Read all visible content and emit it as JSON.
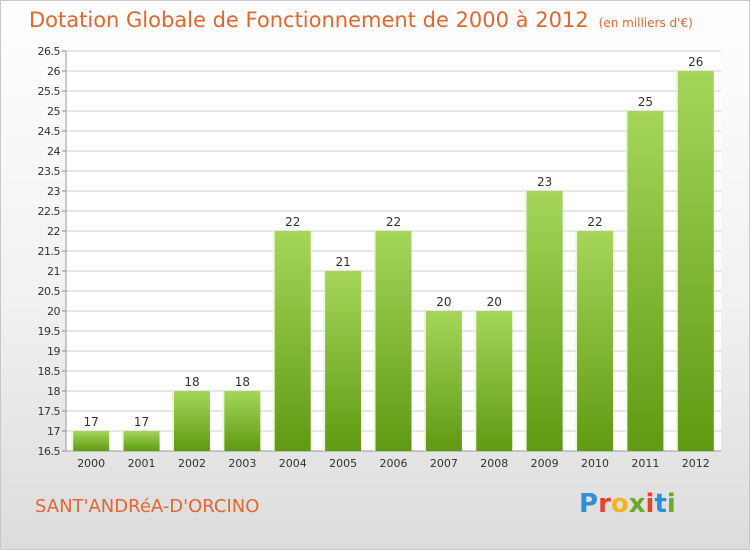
{
  "header": {
    "title": "Dotation Globale de Fonctionnement de 2000 à 2012",
    "unit": "(en milliers d'€)"
  },
  "commune": "SANT'ANDRéA-D'ORCINO",
  "logo": {
    "letters": [
      "P",
      "r",
      "o",
      "x",
      "i",
      "t",
      "i"
    ],
    "colors": [
      "#2f8fd6",
      "#e8412e",
      "#f2b417",
      "#6aaa2a",
      "#e8412e",
      "#2f8fd6",
      "#6aaa2a"
    ]
  },
  "colors": {
    "bar_light": "#a5d65a",
    "bar_dark": "#5f9a12",
    "grid": "#cfcfcf",
    "text": "#333333",
    "accent": "#e0672e"
  },
  "chart_data": {
    "type": "bar",
    "categories": [
      "2000",
      "2001",
      "2002",
      "2003",
      "2004",
      "2005",
      "2006",
      "2007",
      "2008",
      "2009",
      "2010",
      "2011",
      "2012"
    ],
    "values": [
      17,
      17,
      18,
      18,
      22,
      21,
      22,
      20,
      20,
      23,
      22,
      25,
      26
    ],
    "ylim": [
      16.5,
      26.5
    ],
    "yticks": [
      "16.5",
      "17",
      "17.5",
      "18",
      "18.5",
      "19",
      "19.5",
      "20",
      "20.5",
      "21",
      "21.5",
      "22",
      "22.5",
      "23",
      "23.5",
      "24",
      "24.5",
      "25",
      "25.5",
      "26",
      "26.5"
    ],
    "grid": true,
    "legend": "none"
  }
}
